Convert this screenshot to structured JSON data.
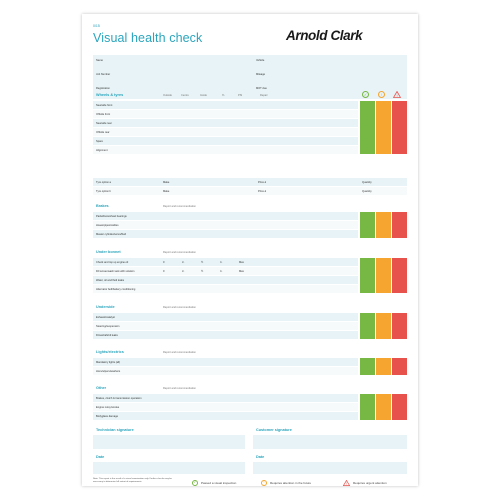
{
  "form": {
    "code": "0/15",
    "title": "Visual health check",
    "brand": "Arnold Clark"
  },
  "customer": {
    "left": [
      "Name",
      "Job Number",
      "Registration"
    ],
    "right": [
      "Vehicle",
      "Mileage",
      "MOT due"
    ]
  },
  "wheels": {
    "heading": "Wheels & tyres",
    "columns": [
      "Outside",
      "Centre",
      "Inside",
      "%",
      "PSI",
      "Repair"
    ],
    "rows": [
      "Nearside front",
      "Offside front",
      "Nearside rear",
      "Offside rear",
      "Spare",
      "Alignment"
    ],
    "tyre_rows": [
      "Tyre option a",
      "Tyre option b"
    ],
    "make_label": "Make",
    "price_label": "Price £",
    "quantity_label": "Quantity"
  },
  "sections": [
    {
      "heading": "Brakes",
      "note": "Report and recommendation",
      "rows": [
        "Pads/discs/wheel bearings",
        "Hoses/pipes/cables",
        "Master cylinder/servo/fluid"
      ]
    },
    {
      "heading": "Under bonnet",
      "note": "Report and recommendation",
      "rows": [
        "Check and top up engine oil",
        "Fill screenwash tank with solution",
        "Water, oil and fluid leaks",
        "Alternator belt/battery conditioning"
      ],
      "levels": [
        "0",
        "¼",
        "½",
        "¾",
        "Max"
      ]
    },
    {
      "heading": "Underside",
      "note": "Report and recommendation",
      "rows": [
        "Exhaust/catalyst",
        "Steering/suspension",
        "Driveshaft/oil leaks"
      ]
    },
    {
      "heading": "Lights/electrics",
      "note": "Report and recommendation",
      "rows": [
        "Mandatory lights (all)",
        "Horn/wipers/washers"
      ]
    },
    {
      "heading": "Other",
      "note": "Report and recommendation",
      "rows": [
        "Brakes, clutch & transmission operation",
        "Engine noisy/smoke",
        "Bodyglass damage"
      ]
    }
  ],
  "signatures": {
    "technician": "Technician signature",
    "customer": "Customer signature",
    "date_left": "Date",
    "date_right": "Date"
  },
  "footer": {
    "note": "Note: This report is the result of a visual examination only. Further checks may be necessary to determine full extent of requirements.",
    "legend": [
      {
        "icon": "check-icon",
        "text": "Passed a visual inspection",
        "color": "#76b843"
      },
      {
        "icon": "exclamation-icon",
        "text": "Requires attention in the future",
        "color": "#f5a530"
      },
      {
        "icon": "warning-icon",
        "text": "Requires urgent attention",
        "color": "#e8524d"
      }
    ]
  },
  "colors": {
    "accent": "#2aa5bd",
    "pass": "#76b843",
    "future": "#f5a530",
    "urgent": "#e8524d",
    "row": "#e7f3f6"
  }
}
